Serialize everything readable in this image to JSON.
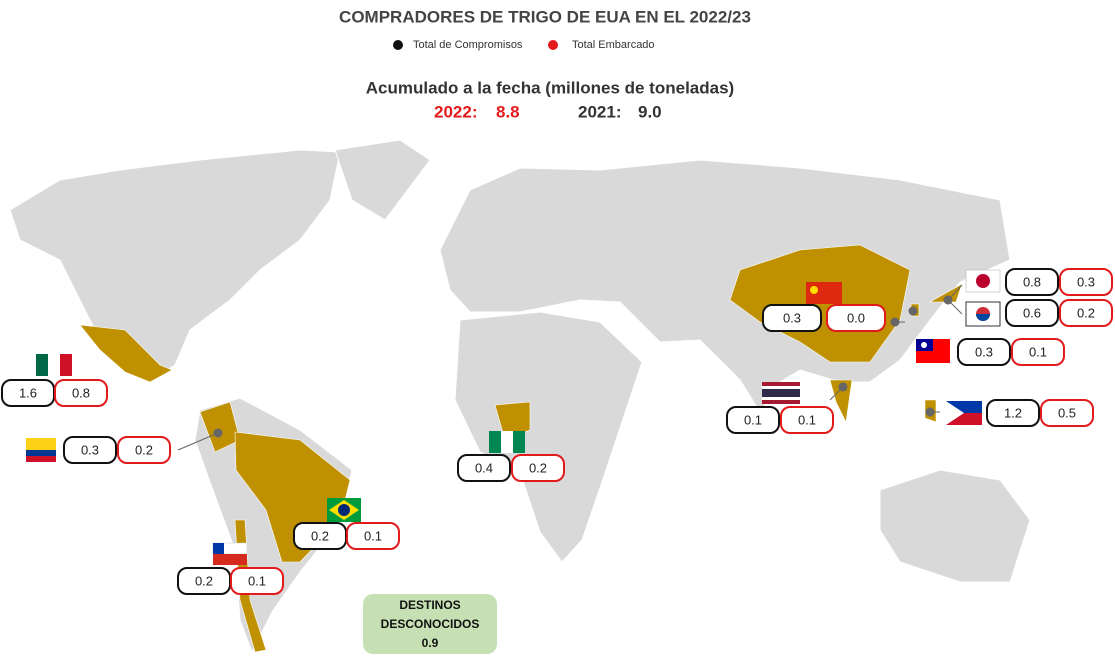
{
  "header": {
    "title": "COMPRADORES DE TRIGO DE EUA EN EL 2022/23",
    "legend": [
      "Total de Compromisos",
      "Total Embarcado"
    ],
    "subtitle": "Acumulado a la fecha (millones de toneladas)",
    "current_label": "2022:",
    "current_value": "8.8",
    "previous_label": "2021:",
    "previous_value": "9.0"
  },
  "markers": [
    {
      "commitments": "1.6",
      "shipped": "0.8"
    },
    {
      "commitments": "0.3",
      "shipped": "0.2"
    },
    {
      "commitments": "0.2",
      "shipped": "0.1"
    },
    {
      "commitments": "0.2",
      "shipped": "0.1"
    },
    {
      "commitments": "0.4",
      "shipped": "0.2"
    },
    {
      "commitments": "0.3",
      "shipped": "0.0"
    },
    {
      "commitments": "0.8",
      "shipped": "0.3"
    },
    {
      "commitments": "0.6",
      "shipped": "0.2"
    },
    {
      "commitments": "0.3",
      "shipped": "0.1"
    },
    {
      "commitments": "0.1",
      "shipped": "0.1"
    },
    {
      "commitments": "1.2",
      "shipped": "0.5"
    }
  ],
  "unknown": {
    "label_line1": "DESTINOS",
    "label_line2": "DESCONOCIDOS",
    "value": "0.9"
  }
}
